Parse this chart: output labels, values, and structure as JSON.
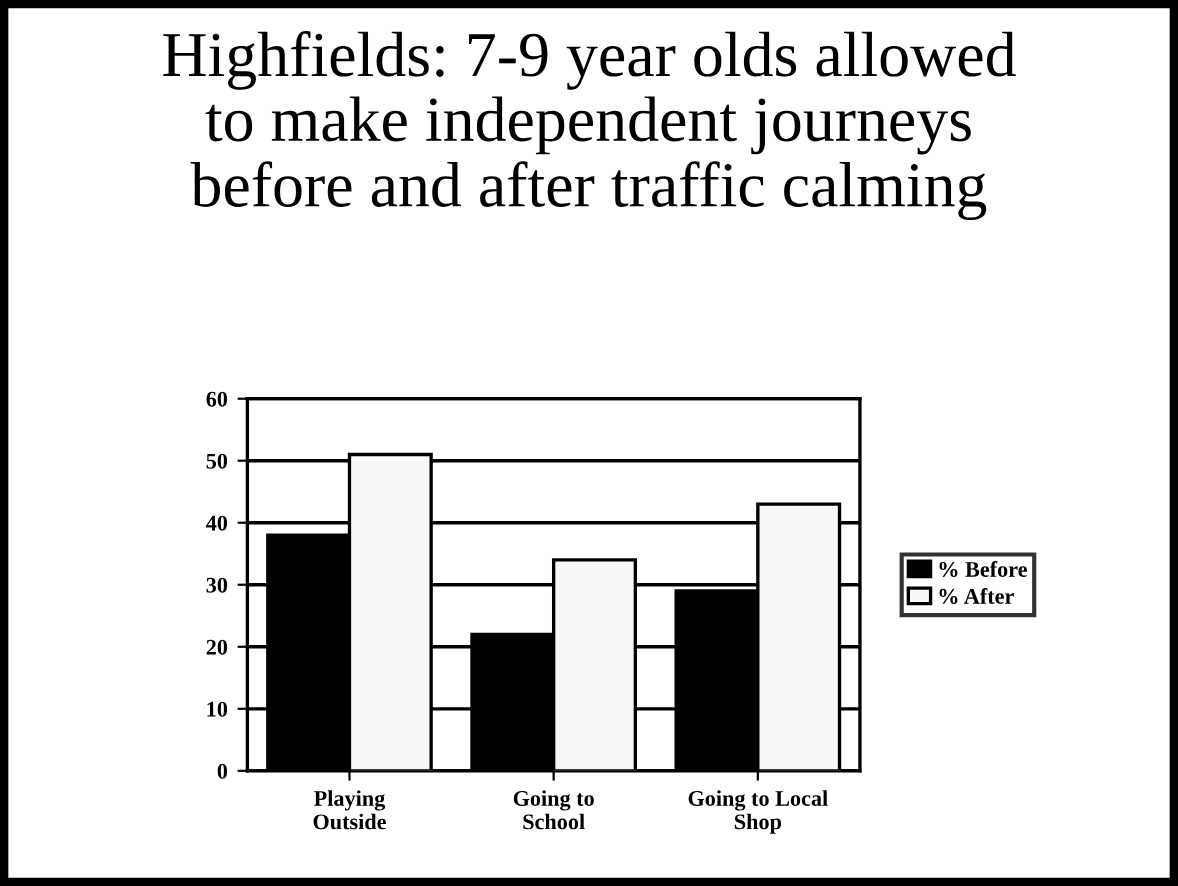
{
  "chart_data": {
    "type": "bar",
    "title": "Highfields: 7-9 year olds allowed\nto make independent journeys\nbefore and after traffic calming",
    "categories": [
      "Playing\nOutside",
      "Going to\nSchool",
      "Going to Local\nShop"
    ],
    "series": [
      {
        "name": "% Before",
        "color": "#000000",
        "values": [
          38,
          22,
          29
        ]
      },
      {
        "name": "% After",
        "color": "#f8f8f8",
        "values": [
          51,
          34,
          43
        ]
      }
    ],
    "ylim": [
      0,
      60
    ],
    "yticks": [
      0,
      10,
      20,
      30,
      40,
      50,
      60
    ],
    "grid": "y",
    "legend": "right"
  }
}
